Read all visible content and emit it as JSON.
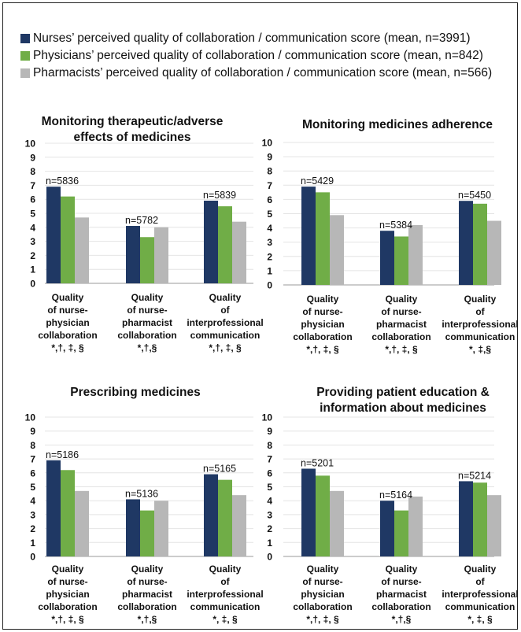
{
  "legend": [
    {
      "label": "Nurses’ perceived quality of collaboration / communication score (mean, n=3991)",
      "color": "#1f3864"
    },
    {
      "label": "Physicians’ perceived quality of collaboration / communication score (mean, n=842)",
      "color": "#70ad47"
    },
    {
      "label": "Pharmacists’ perceived quality of collaboration / communication score (mean, n=566)",
      "color": "#b7b7b7"
    }
  ],
  "chart_data": [
    {
      "type": "bar",
      "title": "Monitoring therapeutic/adverse effects of medicines",
      "title_lines": [
        "Monitoring therapeutic/adverse",
        "effects of medicines"
      ],
      "ylim": [
        0,
        10
      ],
      "yticks": [
        0,
        1,
        2,
        3,
        4,
        5,
        6,
        7,
        8,
        9,
        10
      ],
      "categories": [
        {
          "lines": [
            "Quality",
            "of nurse-",
            "physician",
            "collaboration",
            "*,†, ‡, §"
          ],
          "n_label": "n=5836"
        },
        {
          "lines": [
            "Quality",
            "of nurse-",
            "pharmacist",
            "collaboration",
            "*,†,§"
          ],
          "n_label": "n=5782"
        },
        {
          "lines": [
            "Quality",
            "of",
            "interprofessional",
            "communication",
            "*,†, ‡, §"
          ],
          "n_label": "n=5839"
        }
      ],
      "series": [
        {
          "name": "Nurses",
          "values": [
            6.9,
            4.1,
            5.9
          ]
        },
        {
          "name": "Physicians",
          "values": [
            6.2,
            3.3,
            5.5
          ]
        },
        {
          "name": "Pharmacists",
          "values": [
            4.7,
            4.0,
            4.4
          ]
        }
      ]
    },
    {
      "type": "bar",
      "title": "Monitoring medicines adherence",
      "title_lines": [
        "Monitoring medicines adherence"
      ],
      "ylim": [
        0,
        10
      ],
      "yticks": [
        0,
        1,
        2,
        3,
        4,
        5,
        6,
        7,
        8,
        9,
        10
      ],
      "categories": [
        {
          "lines": [
            "Quality",
            "of nurse-",
            "physician",
            "collaboration",
            "*,†, ‡, §"
          ],
          "n_label": "n=5429"
        },
        {
          "lines": [
            "Quality",
            "of nurse-",
            "pharmacist",
            "collaboration",
            "*,†, ‡, §"
          ],
          "n_label": "n=5384"
        },
        {
          "lines": [
            "Quality",
            "of",
            "interprofessional",
            "communication",
            "*, ‡,§"
          ],
          "n_label": "n=5450"
        }
      ],
      "series": [
        {
          "name": "Nurses",
          "values": [
            6.9,
            3.8,
            5.9
          ]
        },
        {
          "name": "Physicians",
          "values": [
            6.5,
            3.4,
            5.7
          ]
        },
        {
          "name": "Pharmacists",
          "values": [
            4.9,
            4.2,
            4.5
          ]
        }
      ]
    },
    {
      "type": "bar",
      "title": "Prescribing medicines",
      "title_lines": [
        "Prescribing medicines"
      ],
      "ylim": [
        0,
        10
      ],
      "yticks": [
        0,
        1,
        2,
        3,
        4,
        5,
        6,
        7,
        8,
        9,
        10
      ],
      "categories": [
        {
          "lines": [
            "Quality",
            "of nurse-",
            "physician",
            "collaboration",
            "*,†, ‡, §"
          ],
          "n_label": "n=5186"
        },
        {
          "lines": [
            "Quality",
            "of nurse-",
            "pharmacist",
            "collaboration",
            "*,†,§"
          ],
          "n_label": "n=5136"
        },
        {
          "lines": [
            "Quality",
            "of",
            "interprofessional",
            "communication",
            "*, ‡, §"
          ],
          "n_label": "n=5165"
        }
      ],
      "series": [
        {
          "name": "Nurses",
          "values": [
            6.9,
            4.1,
            5.9
          ]
        },
        {
          "name": "Physicians",
          "values": [
            6.2,
            3.3,
            5.5
          ]
        },
        {
          "name": "Pharmacists",
          "values": [
            4.7,
            4.0,
            4.4
          ]
        }
      ]
    },
    {
      "type": "bar",
      "title": "Providing patient education & information about medicines",
      "title_lines": [
        "Providing patient education &",
        "information about medicines"
      ],
      "ylim": [
        0,
        10
      ],
      "yticks": [
        0,
        1,
        2,
        3,
        4,
        5,
        6,
        7,
        8,
        9,
        10
      ],
      "categories": [
        {
          "lines": [
            "Quality",
            "of nurse-",
            "physician",
            "collaboration",
            "*,†, ‡, §"
          ],
          "n_label": "n=5201"
        },
        {
          "lines": [
            "Quality",
            "of nurse-",
            "pharmacist",
            "collaboration",
            "*,†,§"
          ],
          "n_label": "n=5164"
        },
        {
          "lines": [
            "Quality",
            "of",
            "interprofessional",
            "communication",
            "*, ‡, §"
          ],
          "n_label": "n=5214"
        }
      ],
      "series": [
        {
          "name": "Nurses",
          "values": [
            6.3,
            4.0,
            5.4
          ]
        },
        {
          "name": "Physicians",
          "values": [
            5.8,
            3.3,
            5.3
          ]
        },
        {
          "name": "Pharmacists",
          "values": [
            4.7,
            4.3,
            4.4
          ]
        }
      ]
    }
  ]
}
